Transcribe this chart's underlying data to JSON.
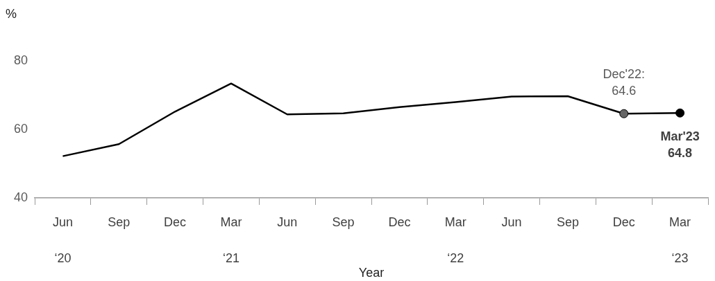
{
  "chart_data": {
    "type": "line",
    "ylabel": "%",
    "xlabel": "Year",
    "categories": [
      "Jun\n‘20",
      "Sep",
      "Dec",
      "Mar\n‘21",
      "Jun",
      "Sep",
      "Dec",
      "Mar\n‘22",
      "Jun",
      "Sep",
      "Dec",
      "Mar\n‘23"
    ],
    "series": [
      {
        "color": "#000000",
        "values": [
          52.2,
          55.7,
          65.2,
          73.4,
          64.4,
          64.7,
          66.5,
          68.0,
          69.6,
          69.7,
          64.6,
          64.8
        ],
        "colors": [
          null,
          null,
          null,
          null,
          null,
          null,
          null,
          null,
          null,
          null,
          "#666666",
          "#000000"
        ],
        "value_labels": [
          null,
          null,
          null,
          null,
          null,
          null,
          null,
          null,
          null,
          null,
          "Dec'22:\n64.6",
          "Mar'23\n64.8"
        ]
      }
    ],
    "ylim": [
      40,
      80
    ],
    "yticks": [
      40,
      60,
      80
    ],
    "grid": false,
    "legend": false,
    "line_style": "solid"
  }
}
